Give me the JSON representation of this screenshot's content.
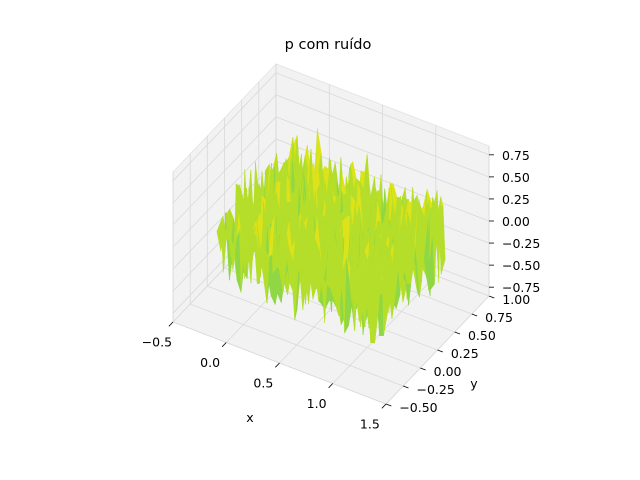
{
  "chart_data": {
    "type": "surface",
    "title": "p com ruído",
    "xlabel": "x",
    "ylabel": "y",
    "zlabel": "",
    "xlim": [
      -0.5,
      1.5
    ],
    "ylim": [
      -0.5,
      1.0
    ],
    "zlim": [
      -0.85,
      0.85
    ],
    "x_ticks": [
      "−0.5",
      "0.0",
      "0.5",
      "1.0",
      "1.5"
    ],
    "y_ticks": [
      "−0.50",
      "−0.25",
      "0.00",
      "0.25",
      "0.50",
      "0.75",
      "1.00"
    ],
    "z_ticks": [
      "−0.75",
      "−0.50",
      "−0.25",
      "0.00",
      "0.25",
      "0.50",
      "0.75"
    ],
    "x_tick_values": [
      -0.5,
      0.0,
      0.5,
      1.0,
      1.5
    ],
    "y_tick_values": [
      -0.5,
      -0.25,
      0.0,
      0.25,
      0.5,
      0.75,
      1.0
    ],
    "z_tick_values": [
      -0.75,
      -0.5,
      -0.25,
      0.0,
      0.25,
      0.5,
      0.75
    ],
    "surface": {
      "x_range": [
        -0.25,
        1.25
      ],
      "y_range": [
        -0.25,
        0.75
      ],
      "base_level": -0.05,
      "noise_amplitude": 0.65,
      "colormap": "viridis-upper",
      "colors": [
        "#5fd35f",
        "#8fd744",
        "#b5de2b",
        "#dde318",
        "#fde725"
      ]
    },
    "grid": true,
    "pane_color": "#f2f2f2",
    "grid_color": "#d9d9d9"
  }
}
